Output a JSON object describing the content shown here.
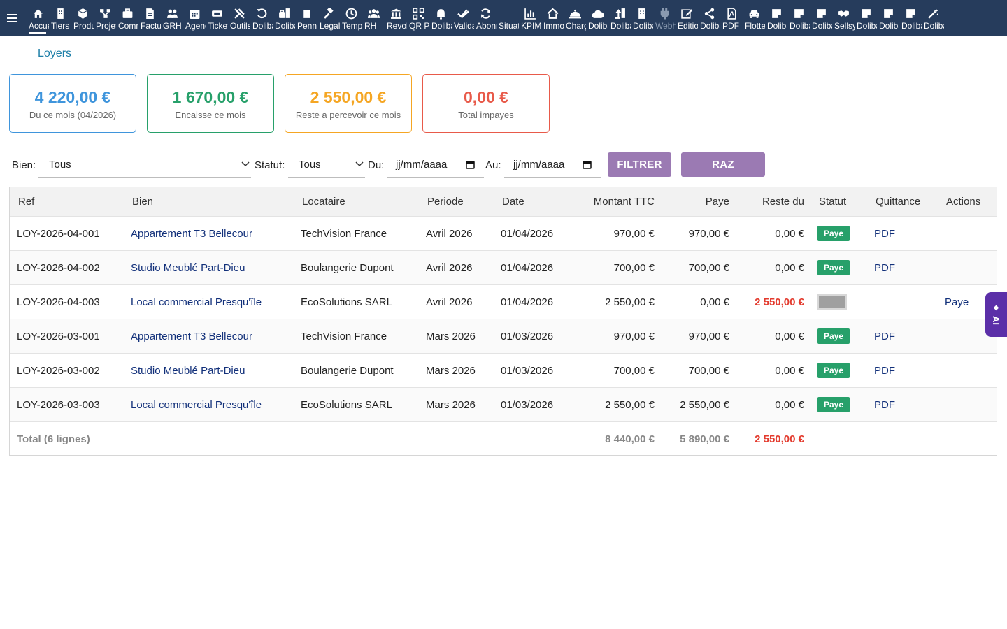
{
  "menu": [
    {
      "label": "Accueil",
      "icon": "home-icon"
    },
    {
      "label": "Tiers",
      "icon": "building-icon"
    },
    {
      "label": "Produits",
      "icon": "cube-icon"
    },
    {
      "label": "Projets",
      "icon": "project-icon"
    },
    {
      "label": "Commerce",
      "icon": "briefcase-icon"
    },
    {
      "label": "Facturation",
      "icon": "invoice-icon"
    },
    {
      "label": "GRH",
      "icon": "users-icon"
    },
    {
      "label": "Agenda",
      "icon": "calendar-icon"
    },
    {
      "label": "Tickets",
      "icon": "ticket-icon"
    },
    {
      "label": "Outils",
      "icon": "tools-icon"
    },
    {
      "label": "Dolibarr",
      "icon": "undo-icon"
    },
    {
      "label": "Dolibarr",
      "icon": "bag-doc-icon"
    },
    {
      "label": "Penny",
      "icon": "note-icon"
    },
    {
      "label": "Legal",
      "icon": "gavel-icon"
    },
    {
      "label": "Temps",
      "icon": "clock-icon"
    },
    {
      "label": "RH",
      "icon": "team-icon"
    },
    {
      "label": "Revolut",
      "icon": "bank-icon"
    },
    {
      "label": "QR Pay",
      "icon": "qr-icon"
    },
    {
      "label": "Dolibarr",
      "icon": "bell-icon"
    },
    {
      "label": "Validation",
      "icon": "double-check-icon"
    },
    {
      "label": "Abonnements",
      "icon": "refresh-icon"
    },
    {
      "label": "Situation",
      "icon": "blank-icon"
    },
    {
      "label": "KPIM",
      "icon": "chart-icon"
    },
    {
      "label": "Immobilier",
      "icon": "house-icon"
    },
    {
      "label": "Charges",
      "icon": "cloche-icon"
    },
    {
      "label": "Dolibarr",
      "icon": "cloud-icon"
    },
    {
      "label": "Dolibarr",
      "icon": "upload-doc-icon"
    },
    {
      "label": "Dolibarr",
      "icon": "building-doc-icon"
    },
    {
      "label": "Webhooks",
      "icon": "plug-icon"
    },
    {
      "label": "Edition",
      "icon": "edit-icon"
    },
    {
      "label": "Dolibarr",
      "icon": "share-icon"
    },
    {
      "label": "PDF",
      "icon": "pdf-icon"
    },
    {
      "label": "Flotte",
      "icon": "car-icon"
    },
    {
      "label": "Dolibarr",
      "icon": "sticky-note-icon"
    },
    {
      "label": "Dolibarr",
      "icon": "sticky-note-icon"
    },
    {
      "label": "Dolibarr",
      "icon": "sticky-note-icon"
    },
    {
      "label": "Sellsy",
      "icon": "handshake-icon"
    },
    {
      "label": "Dolibarr",
      "icon": "sticky-note-icon"
    },
    {
      "label": "Dolibarr",
      "icon": "sticky-note-icon"
    },
    {
      "label": "Dolibarr",
      "icon": "sticky-note-icon"
    },
    {
      "label": "Dolibarr",
      "icon": "magic-wand-icon"
    }
  ],
  "page_title": "Loyers",
  "cards": [
    {
      "amount": "4 220,00 €",
      "caption": "Du ce mois (04/2026)",
      "color": "#3f95dc"
    },
    {
      "amount": "1 670,00 €",
      "caption": "Encaisse ce mois",
      "color": "#27a06a"
    },
    {
      "amount": "2 550,00 €",
      "caption": "Reste a percevoir ce mois",
      "color": "#f5a623"
    },
    {
      "amount": "0,00 €",
      "caption": "Total impayes",
      "color": "#e85a4a"
    }
  ],
  "filters": {
    "bien_label": "Bien:",
    "bien_value": "Tous",
    "statut_label": "Statut:",
    "statut_value": "Tous",
    "du_label": "Du:",
    "du_value": "jj/mm/aaaa",
    "au_label": "Au:",
    "au_value": "jj/mm/aaaa",
    "filter_button": "FILTRER",
    "reset_button": "RAZ",
    "button_color": "#9b7ab3"
  },
  "table": {
    "headers": [
      "Ref",
      "Bien",
      "Locataire",
      "Periode",
      "Date",
      "Montant TTC",
      "Paye",
      "Reste du",
      "Statut",
      "Quittance",
      "Actions"
    ],
    "rows": [
      {
        "ref": "LOY-2026-04-001",
        "bien": "Appartement T3 Bellecour",
        "locataire": "TechVision France",
        "periode": "Avril 2026",
        "date": "01/04/2026",
        "montant": "970,00 €",
        "paye": "970,00 €",
        "reste": "0,00 €",
        "statut": "Paye",
        "quittance": "PDF",
        "action": ""
      },
      {
        "ref": "LOY-2026-04-002",
        "bien": "Studio Meublé Part-Dieu",
        "locataire": "Boulangerie Dupont",
        "periode": "Avril 2026",
        "date": "01/04/2026",
        "montant": "700,00 €",
        "paye": "700,00 €",
        "reste": "0,00 €",
        "statut": "Paye",
        "quittance": "PDF",
        "action": ""
      },
      {
        "ref": "LOY-2026-04-003",
        "bien": "Local commercial Presqu'île",
        "locataire": "EcoSolutions SARL",
        "periode": "Avril 2026",
        "date": "01/04/2026",
        "montant": "2 550,00 €",
        "paye": "0,00 €",
        "reste": "2 550,00 €",
        "statut": "",
        "quittance": "",
        "action": "Paye"
      },
      {
        "ref": "LOY-2026-03-001",
        "bien": "Appartement T3 Bellecour",
        "locataire": "TechVision France",
        "periode": "Mars 2026",
        "date": "01/03/2026",
        "montant": "970,00 €",
        "paye": "970,00 €",
        "reste": "0,00 €",
        "statut": "Paye",
        "quittance": "PDF",
        "action": ""
      },
      {
        "ref": "LOY-2026-03-002",
        "bien": "Studio Meublé Part-Dieu",
        "locataire": "Boulangerie Dupont",
        "periode": "Mars 2026",
        "date": "01/03/2026",
        "montant": "700,00 €",
        "paye": "700,00 €",
        "reste": "0,00 €",
        "statut": "Paye",
        "quittance": "PDF",
        "action": ""
      },
      {
        "ref": "LOY-2026-03-003",
        "bien": "Local commercial Presqu'île",
        "locataire": "EcoSolutions SARL",
        "periode": "Mars 2026",
        "date": "01/03/2026",
        "montant": "2 550,00 €",
        "paye": "2 550,00 €",
        "reste": "0,00 €",
        "statut": "Paye",
        "quittance": "PDF",
        "action": ""
      }
    ],
    "total": {
      "label": "Total (6 lignes)",
      "montant": "8 440,00 €",
      "paye": "5 890,00 €",
      "reste": "2 550,00 €"
    }
  },
  "ai_tab": {
    "label": "AI",
    "icon": "sparkle-icon"
  }
}
